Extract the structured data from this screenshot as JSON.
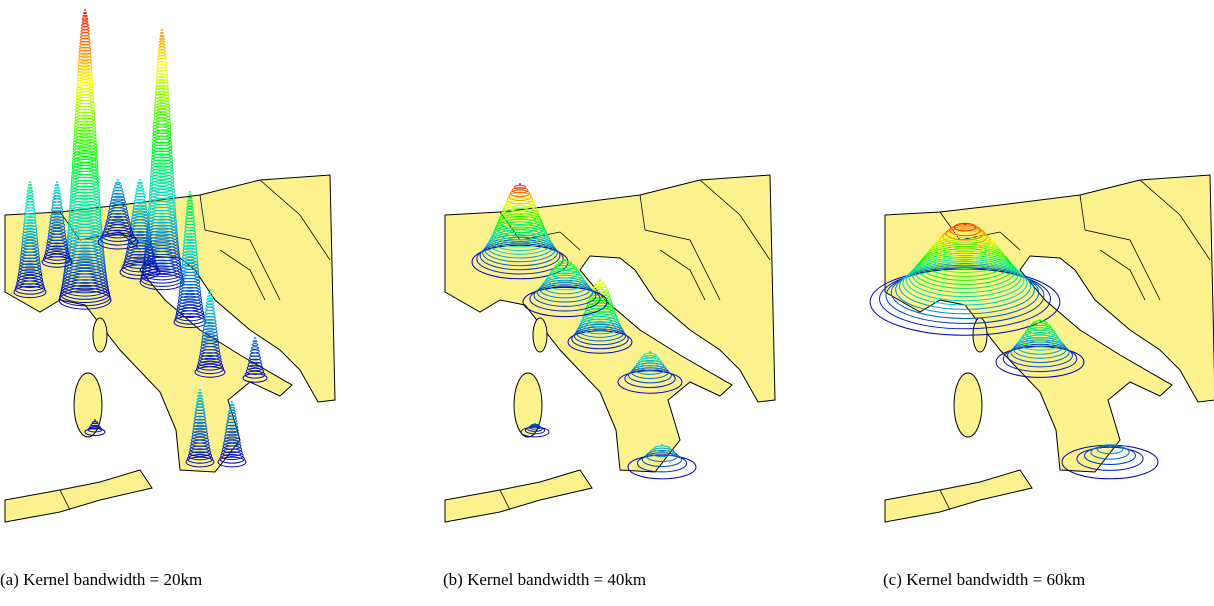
{
  "panels": [
    {
      "caption": "(a) Kernel bandwidth = 20km"
    },
    {
      "caption": "(b) Kernel bandwidth = 40km"
    },
    {
      "caption": "(c) Kernel bandwidth = 60km"
    }
  ]
}
